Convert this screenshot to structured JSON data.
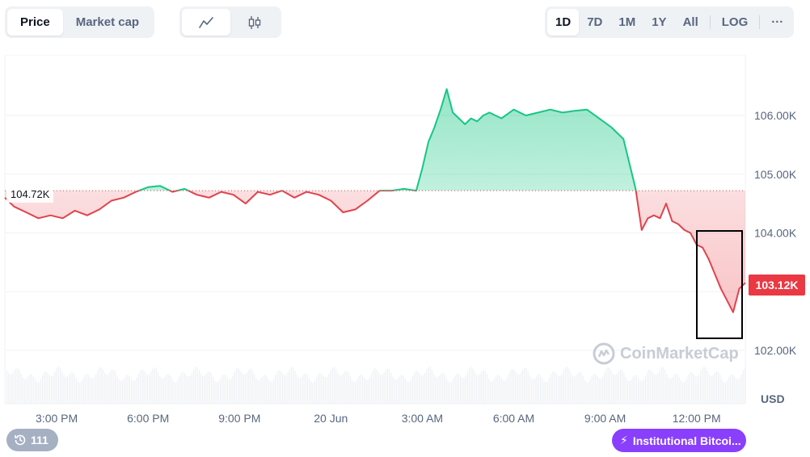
{
  "price_toggle": {
    "options": [
      {
        "label": "Price",
        "active": true
      },
      {
        "label": "Market cap",
        "active": false
      }
    ]
  },
  "chart_type_toggle": {
    "options": [
      {
        "icon": "line-chart-icon",
        "active": true
      },
      {
        "icon": "candlestick-icon",
        "active": false
      }
    ]
  },
  "time_ranges": {
    "options": [
      {
        "label": "1D",
        "active": true
      },
      {
        "label": "7D",
        "active": false
      },
      {
        "label": "1M",
        "active": false
      },
      {
        "label": "1Y",
        "active": false
      },
      {
        "label": "All",
        "active": false
      }
    ],
    "log_label": "LOG",
    "more_label": "···"
  },
  "chart": {
    "reference_price_label": "104.72K",
    "last_price_label": "103.12K",
    "currency_label": "USD",
    "watermark": "CoinMarketCap",
    "events_count": "111",
    "news_pill": "Institutional Bitcoi..."
  },
  "chart_data": {
    "type": "area",
    "ylim": [
      101500,
      107000
    ],
    "y_ticks": [
      {
        "value": 102000,
        "label": "102.00K"
      },
      {
        "value": 103000,
        "label": ""
      },
      {
        "value": 104000,
        "label": "104.00K"
      },
      {
        "value": 105000,
        "label": "105.00K"
      },
      {
        "value": 106000,
        "label": "106.00K"
      }
    ],
    "x_ticks": [
      "3:00 PM",
      "6:00 PM",
      "9:00 PM",
      "20 Jun",
      "3:00 AM",
      "6:00 AM",
      "9:00 AM",
      "12:00 PM"
    ],
    "x_range_hours": [
      13.3,
      37.6
    ],
    "baseline": 104720,
    "colors": {
      "up": "#16c784",
      "down": "#e0434d"
    },
    "series": [
      {
        "x": [
          13.3,
          13.6,
          14,
          14.4,
          14.8,
          15.2,
          15.6,
          16,
          16.4,
          16.8,
          17.2,
          17.6,
          18,
          18.4,
          18.8,
          19.2,
          19.6,
          20,
          20.4,
          20.8,
          21.2,
          21.6,
          22,
          22.4,
          22.8,
          23.2,
          23.6,
          24,
          24.4,
          24.8,
          25.2,
          25.6,
          26,
          26.4,
          26.8,
          27,
          27.2,
          27.4,
          27.6,
          27.8,
          28,
          28.2,
          28.4,
          28.6,
          28.8,
          29,
          29.2,
          29.6,
          30,
          30.4,
          30.8,
          31.2,
          31.6,
          32,
          32.4,
          32.8,
          33.2,
          33.6,
          34,
          34.2,
          34.4,
          34.6,
          34.8,
          35,
          35.2,
          35.4,
          35.6,
          35.8,
          36,
          36.2,
          36.4,
          36.6,
          36.8,
          37,
          37.2,
          37.4,
          37.6
        ],
        "values": [
          104600,
          104450,
          104350,
          104250,
          104300,
          104250,
          104380,
          104300,
          104400,
          104550,
          104600,
          104700,
          104780,
          104800,
          104700,
          104750,
          104650,
          104600,
          104700,
          104650,
          104500,
          104700,
          104650,
          104720,
          104600,
          104700,
          104650,
          104550,
          104350,
          104400,
          104550,
          104720,
          104720,
          104750,
          104720,
          105100,
          105550,
          105800,
          106100,
          106450,
          106050,
          105950,
          105850,
          105950,
          105900,
          106000,
          106050,
          105950,
          106100,
          106000,
          106050,
          106100,
          106050,
          106080,
          106100,
          105950,
          105800,
          105600,
          104750,
          104050,
          104250,
          104300,
          104250,
          104500,
          104200,
          104150,
          104050,
          104000,
          103800,
          103750,
          103550,
          103300,
          103050,
          102850,
          102650,
          103050,
          103150
        ]
      }
    ]
  }
}
